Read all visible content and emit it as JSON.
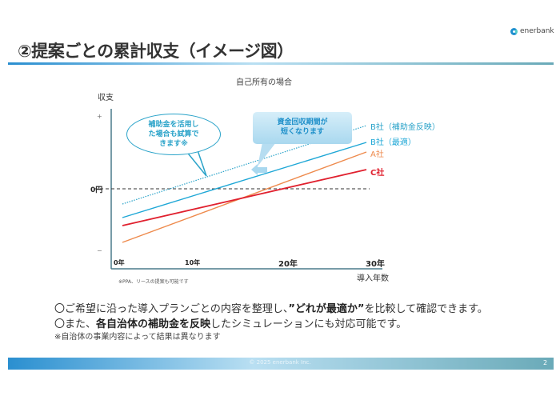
{
  "header": {
    "logo_text": "enerbank",
    "title": "②提案ごとの累計収支（イメージ図）"
  },
  "callouts": {
    "subsidy_bubble": [
      "補助金を活用し",
      "た場合も試算で",
      "きます※"
    ],
    "payback_box": [
      "資金回収期間が",
      "短くなります"
    ]
  },
  "chart_data": {
    "type": "line",
    "title": "自己所有の場合",
    "ylabel": "収支",
    "xlabel": "導入年数",
    "y_tick_labels": {
      "plus": "+",
      "zero": "0円",
      "minus": "−"
    },
    "x_tick_labels": [
      "0年",
      "10年",
      "20年",
      "30年"
    ],
    "xlim": [
      0,
      30
    ],
    "ylim": [
      -10,
      10
    ],
    "zero_line": "dashed",
    "series": [
      {
        "name": "B社（補助金反映）",
        "x": [
          0,
          30
        ],
        "y": [
          -1.9,
          7.9
        ],
        "color": "#2aa3c9",
        "style": "dotted"
      },
      {
        "name": "B社（最適）",
        "x": [
          0,
          30
        ],
        "y": [
          -3.6,
          5.8
        ],
        "color": "#1ea7d6",
        "style": "solid"
      },
      {
        "name": "A社",
        "x": [
          0,
          30
        ],
        "y": [
          -6.7,
          4.6
        ],
        "color": "#ee8a4c",
        "style": "solid"
      },
      {
        "name": "C社",
        "x": [
          0,
          30
        ],
        "y": [
          -4.6,
          2.4
        ],
        "color": "#e0202e",
        "style": "solid"
      }
    ],
    "note": "※PPA、リースの提案も可能です"
  },
  "body": {
    "line1": {
      "pre": "〇ご希望に沿った導入プランごとの内容を整理し、",
      "bold": "”どれが最適か”",
      "post": "を比較して確認できます。"
    },
    "line2": {
      "pre": "〇また、",
      "bold": "各自治体の補助金を反映",
      "post": "したシミュレーションにも対応可能です。"
    },
    "footnote": "※自治体の事業内容によって結果は異なります"
  },
  "footer": {
    "copyright": "© 2025 enerbank Inc.",
    "page": "2"
  }
}
